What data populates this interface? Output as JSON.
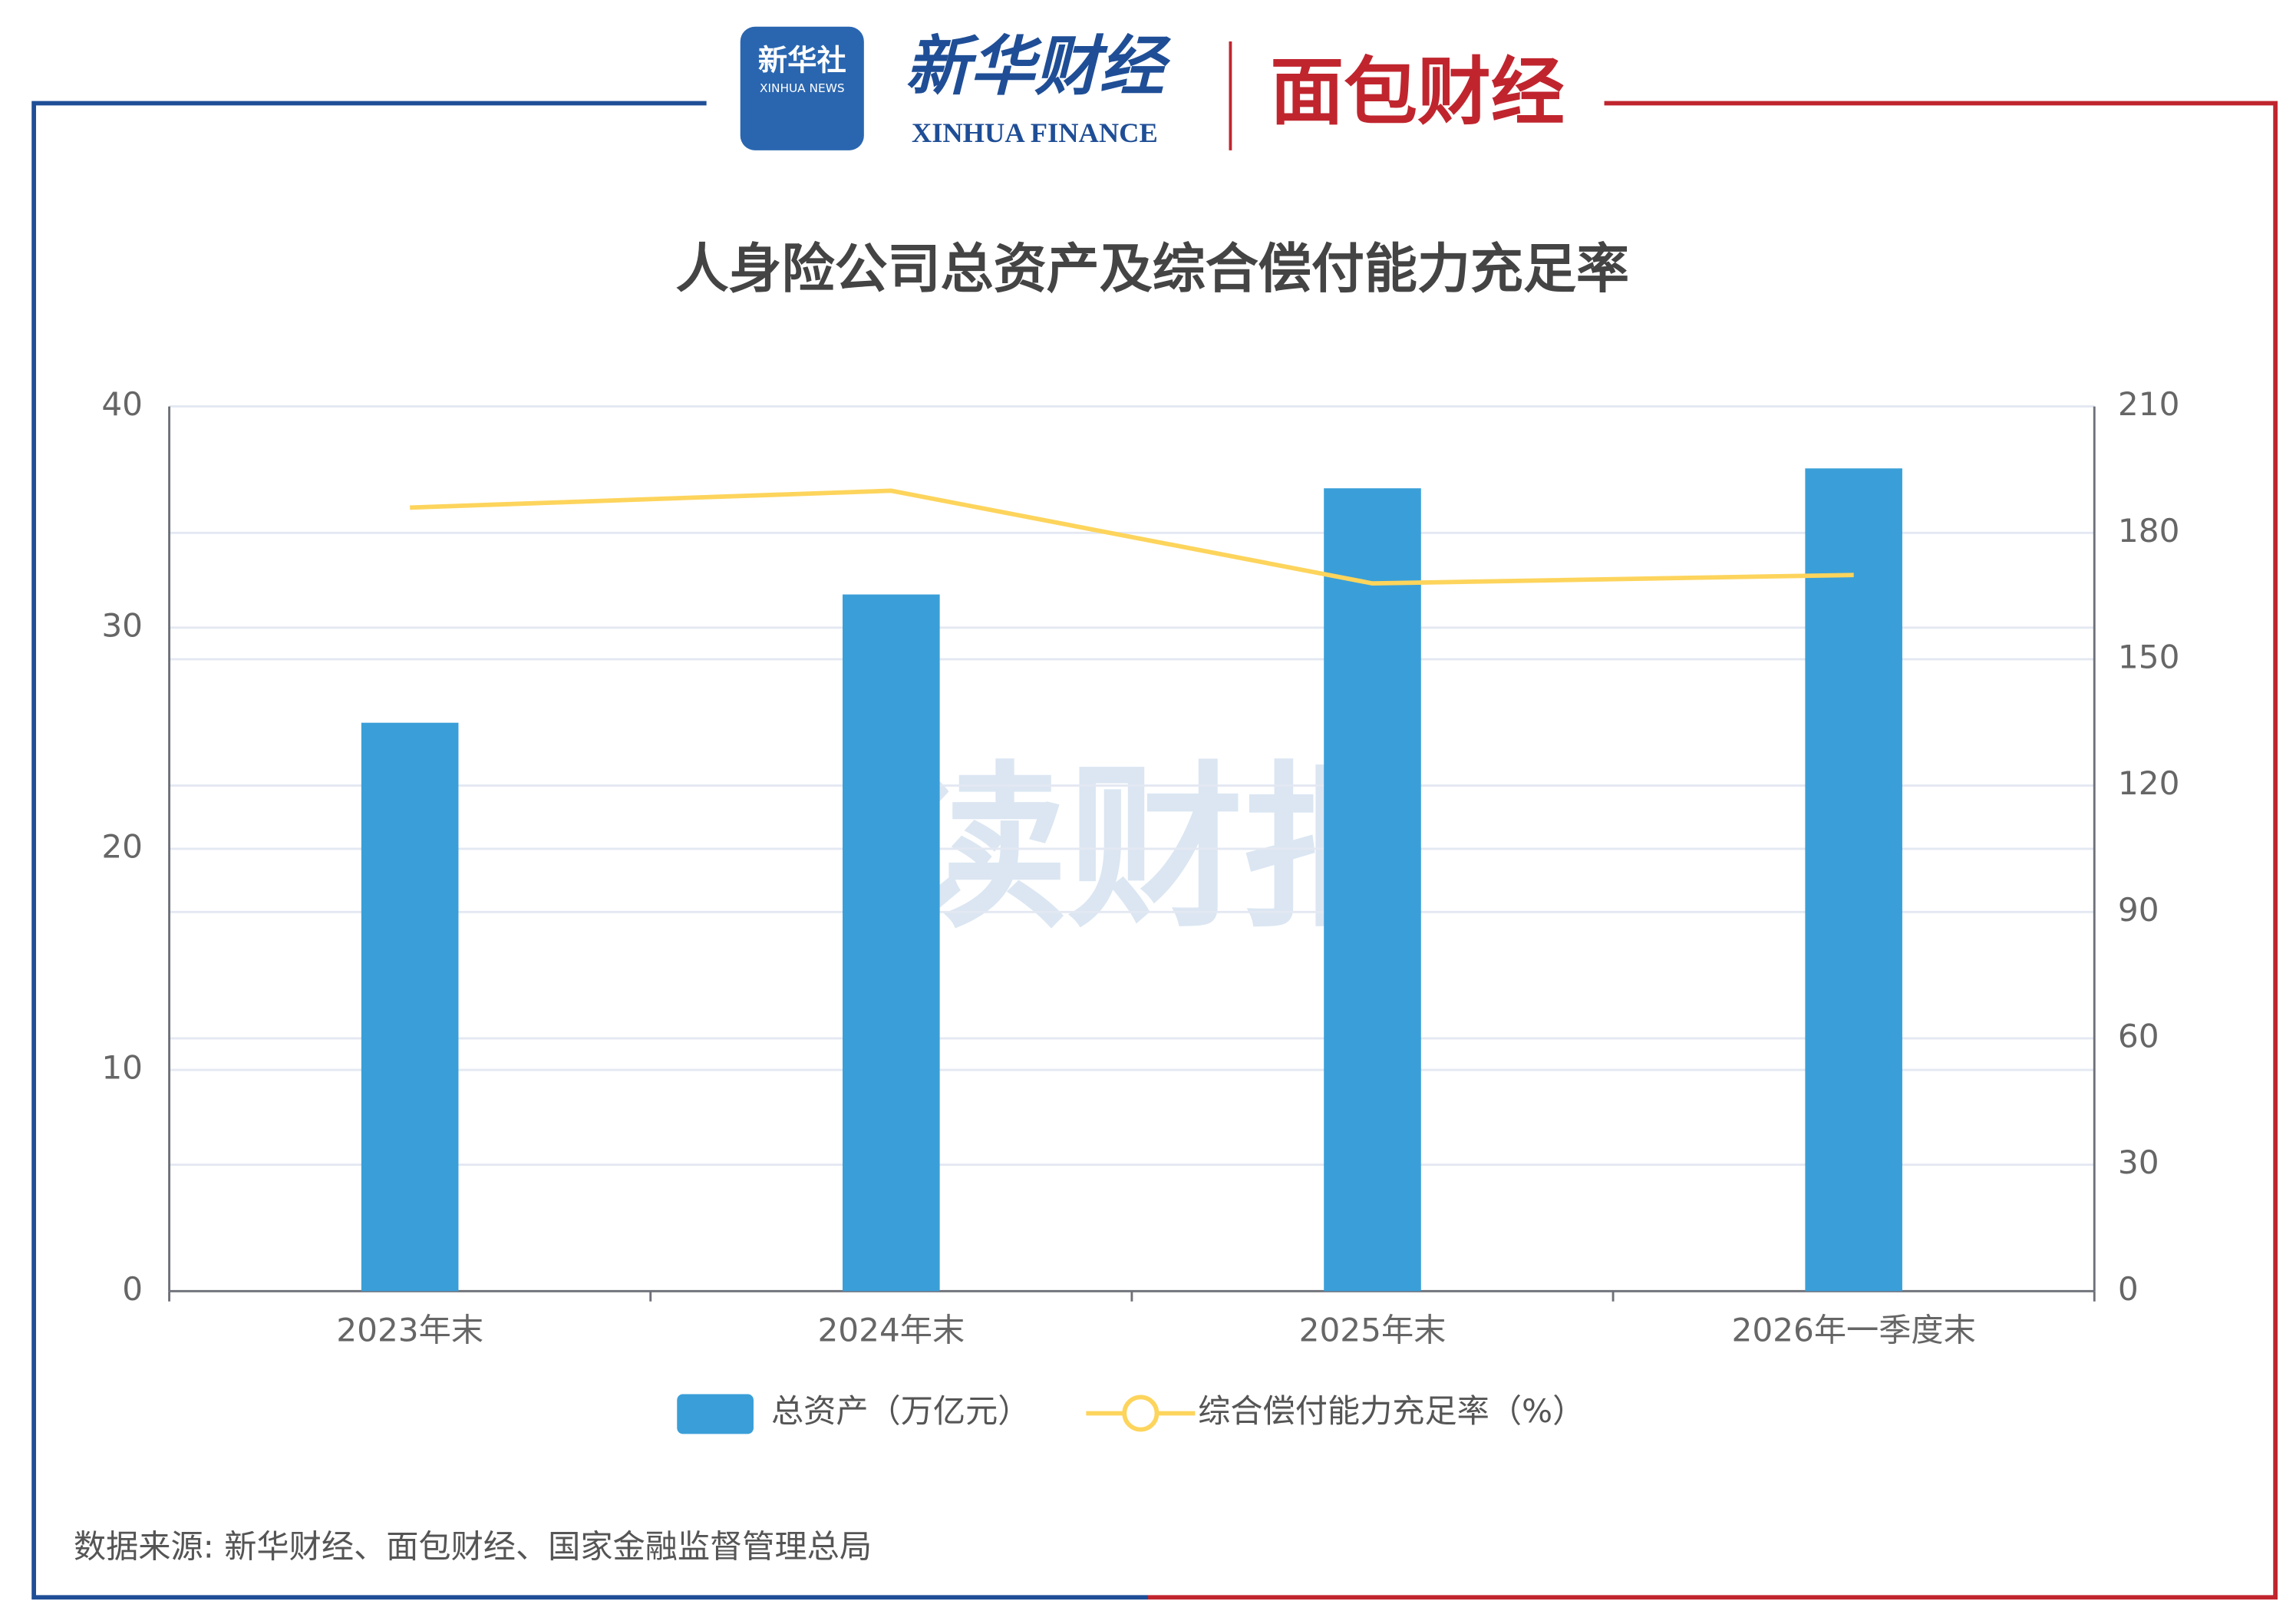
{
  "branding": {
    "xinhua_logo": "新华社",
    "xinhua_news": "XINHUA NEWS",
    "xinhua_finance_cn": "新华财经",
    "xinhua_finance_en": "XINHUA FINANCE",
    "mianbao": "面包财经",
    "watermark": "读财报"
  },
  "chart_data": {
    "type": "bar",
    "title": "人身险公司总资产及综合偿付能力充足率",
    "categories": [
      "2023年末",
      "2024年末",
      "2025年末",
      "2026年一季度末"
    ],
    "series": [
      {
        "name": "总资产（万亿元）",
        "type": "bar",
        "color": "#3a9fd8",
        "values": [
          25.7,
          31.5,
          36.3,
          37.2
        ]
      },
      {
        "name": "综合偿付能力充足率（%）",
        "type": "line",
        "axis": "y2",
        "color": "#fdd45c",
        "values": [
          186,
          190,
          168,
          170
        ]
      }
    ],
    "ylim": [
      0,
      40
    ],
    "yticks": [
      0,
      10,
      20,
      30,
      40
    ],
    "y2lim": [
      0,
      210
    ],
    "y2ticks": [
      0,
      30,
      60,
      90,
      120,
      150,
      180,
      210
    ],
    "grid": true,
    "legend": "bottom",
    "source": "数据来源: 新华财经、面包财经、国家金融监督管理总局"
  }
}
